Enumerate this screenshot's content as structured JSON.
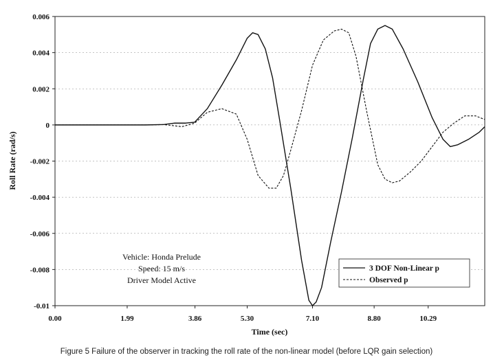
{
  "caption": "Figure 5 Failure of the observer in tracking the roll rate of the non-linear model (before LQR gain selection)",
  "chart_data": {
    "type": "line",
    "title": "",
    "xlabel": "Time (sec)",
    "ylabel": "Roll Rate (rad/s)",
    "xlim": [
      0,
      11.85
    ],
    "ylim": [
      -0.01,
      0.006
    ],
    "xticks": [
      0.0,
      1.99,
      3.86,
      5.3,
      7.1,
      8.8,
      10.29
    ],
    "xtick_labels": [
      "0.00",
      "1.99",
      "3.86",
      "5.30",
      "7.10",
      "8.80",
      "10.29"
    ],
    "yticks": [
      0.006,
      0.004,
      0.002,
      0,
      -0.002,
      -0.004,
      -0.006,
      -0.008,
      -0.01
    ],
    "ytick_labels": [
      "0.006",
      "0.004",
      "0.002",
      "0",
      "-0.002",
      "-0.004",
      "-0.006",
      "-0.008",
      "-0.01"
    ],
    "grid": "horizontal-dashed",
    "legend_position": "bottom-right",
    "annotation": [
      "Vehicle: Honda Prelude",
      "Speed: 15 m/s",
      "Driver Model Active"
    ],
    "series": [
      {
        "name": "3 DOF Non-Linear p",
        "style": "solid",
        "color": "#111111",
        "x": [
          0,
          2.5,
          3.0,
          3.3,
          3.6,
          3.85,
          4.2,
          4.6,
          5.0,
          5.3,
          5.45,
          5.6,
          5.8,
          6.0,
          6.2,
          6.5,
          6.8,
          7.0,
          7.1,
          7.2,
          7.35,
          7.6,
          7.9,
          8.2,
          8.5,
          8.7,
          8.9,
          9.1,
          9.3,
          9.6,
          10.0,
          10.4,
          10.7,
          10.9,
          11.1,
          11.4,
          11.7,
          11.85
        ],
        "y": [
          0,
          0,
          2e-05,
          0.0001,
          0.0001,
          0.00015,
          0.0009,
          0.0022,
          0.0036,
          0.0048,
          0.0051,
          0.005,
          0.0042,
          0.0026,
          0.0002,
          -0.0035,
          -0.0075,
          -0.0097,
          -0.01,
          -0.0098,
          -0.009,
          -0.0065,
          -0.0037,
          -0.0007,
          0.0025,
          0.0045,
          0.0053,
          0.0055,
          0.0053,
          0.0042,
          0.0024,
          0.0004,
          -0.0008,
          -0.0012,
          -0.0011,
          -0.0008,
          -0.0004,
          -0.0001
        ]
      },
      {
        "name": "Observed p",
        "style": "dashed",
        "color": "#111111",
        "x": [
          0,
          2.5,
          3.0,
          3.5,
          3.85,
          4.2,
          4.6,
          5.0,
          5.3,
          5.6,
          5.9,
          6.1,
          6.3,
          6.5,
          6.8,
          7.1,
          7.4,
          7.7,
          7.9,
          8.1,
          8.3,
          8.6,
          8.9,
          9.1,
          9.3,
          9.5,
          9.8,
          10.1,
          10.4,
          10.7,
          11.0,
          11.3,
          11.6,
          11.85
        ],
        "y": [
          0,
          0,
          2e-05,
          -0.0001,
          0.0001,
          0.0007,
          0.0009,
          0.0006,
          -0.0008,
          -0.0028,
          -0.0035,
          -0.0035,
          -0.0028,
          -0.0014,
          0.0008,
          0.0033,
          0.0047,
          0.0052,
          0.0053,
          0.0051,
          0.0038,
          0.0007,
          -0.0022,
          -0.003,
          -0.0032,
          -0.0031,
          -0.0026,
          -0.002,
          -0.0012,
          -0.0004,
          0.0001,
          0.0005,
          0.0005,
          0.0003
        ]
      }
    ]
  }
}
